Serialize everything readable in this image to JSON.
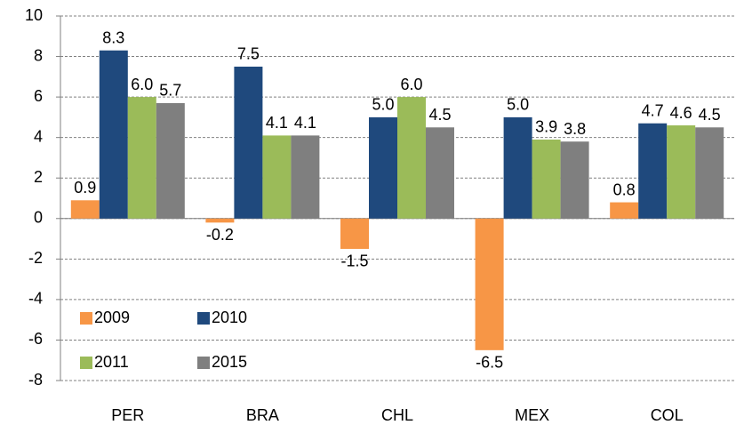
{
  "chart_data": {
    "type": "bar",
    "categories": [
      "PER",
      "BRA",
      "CHL",
      "MEX",
      "COL"
    ],
    "series": [
      {
        "name": "2009",
        "color": "#f79646",
        "values": [
          0.9,
          -0.2,
          -1.5,
          -6.5,
          0.8
        ],
        "value_labels": [
          "0.9",
          "-0.2",
          "-1.5",
          "-6.5",
          "0.8"
        ]
      },
      {
        "name": "2010",
        "color": "#1f497d",
        "values": [
          8.3,
          7.5,
          5.0,
          5.0,
          4.7
        ],
        "value_labels": [
          "8.3",
          "7.5",
          "5.0",
          "5.0",
          "4.7"
        ]
      },
      {
        "name": "2011",
        "color": "#9bbb59",
        "values": [
          6.0,
          4.1,
          6.0,
          3.9,
          4.6
        ],
        "value_labels": [
          "6.0",
          "4.1",
          "6.0",
          "3.9",
          "4.6"
        ]
      },
      {
        "name": "2015",
        "color": "#7f7f7f",
        "values": [
          5.7,
          4.1,
          4.5,
          3.8,
          4.5
        ],
        "value_labels": [
          "5.7",
          "4.1",
          "4.5",
          "3.8",
          "4.5"
        ]
      }
    ],
    "ylim": [
      -8,
      10
    ],
    "yticks": [
      -8,
      -6,
      -4,
      -2,
      0,
      2,
      4,
      6,
      8,
      10
    ],
    "grid": true,
    "legend": "lower-left"
  }
}
